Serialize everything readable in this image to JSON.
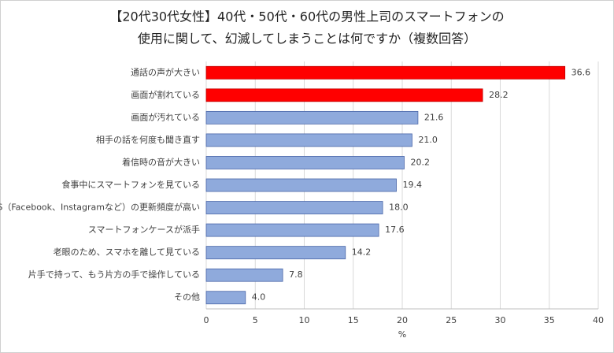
{
  "chart_data": {
    "type": "bar",
    "orientation": "horizontal",
    "title": [
      "【20代30代女性】40代・50代・60代の男性上司のスマートフォンの",
      "使用に関して、幻滅してしまうことは何ですか（複数回答）"
    ],
    "categories": [
      "通話の声が大きい",
      "画面が割れている",
      "画面が汚れている",
      "相手の話を何度も聞き直す",
      "着信時の音が大きい",
      "食事中にスマートフォンを見ている",
      "SNS（Facebook、Instagramなど）の更新頻度が高い",
      "スマートフォンケースが派手",
      "老眼のため、スマホを離して見ている",
      "片手で持って、もう片方の手で操作している",
      "その他"
    ],
    "values": [
      36.6,
      28.2,
      21.6,
      21,
      20.2,
      19.4,
      18,
      17.6,
      14.2,
      7.8,
      4
    ],
    "value_labels": [
      "36.6",
      "28.2",
      "21.6",
      "21.0",
      "20.2",
      "19.4",
      "18.0",
      "17.6",
      "14.2",
      "7.8",
      "4.0"
    ],
    "colors": [
      "#ff0000",
      "#ff0000",
      "#8faadc",
      "#8faadc",
      "#8faadc",
      "#8faadc",
      "#8faadc",
      "#8faadc",
      "#8faadc",
      "#8faadc",
      "#8faadc"
    ],
    "xlabel": "%",
    "xlim": [
      0,
      40
    ],
    "xticks": [
      0,
      5,
      10,
      15,
      20,
      25,
      30,
      35,
      40
    ],
    "grid": true
  }
}
